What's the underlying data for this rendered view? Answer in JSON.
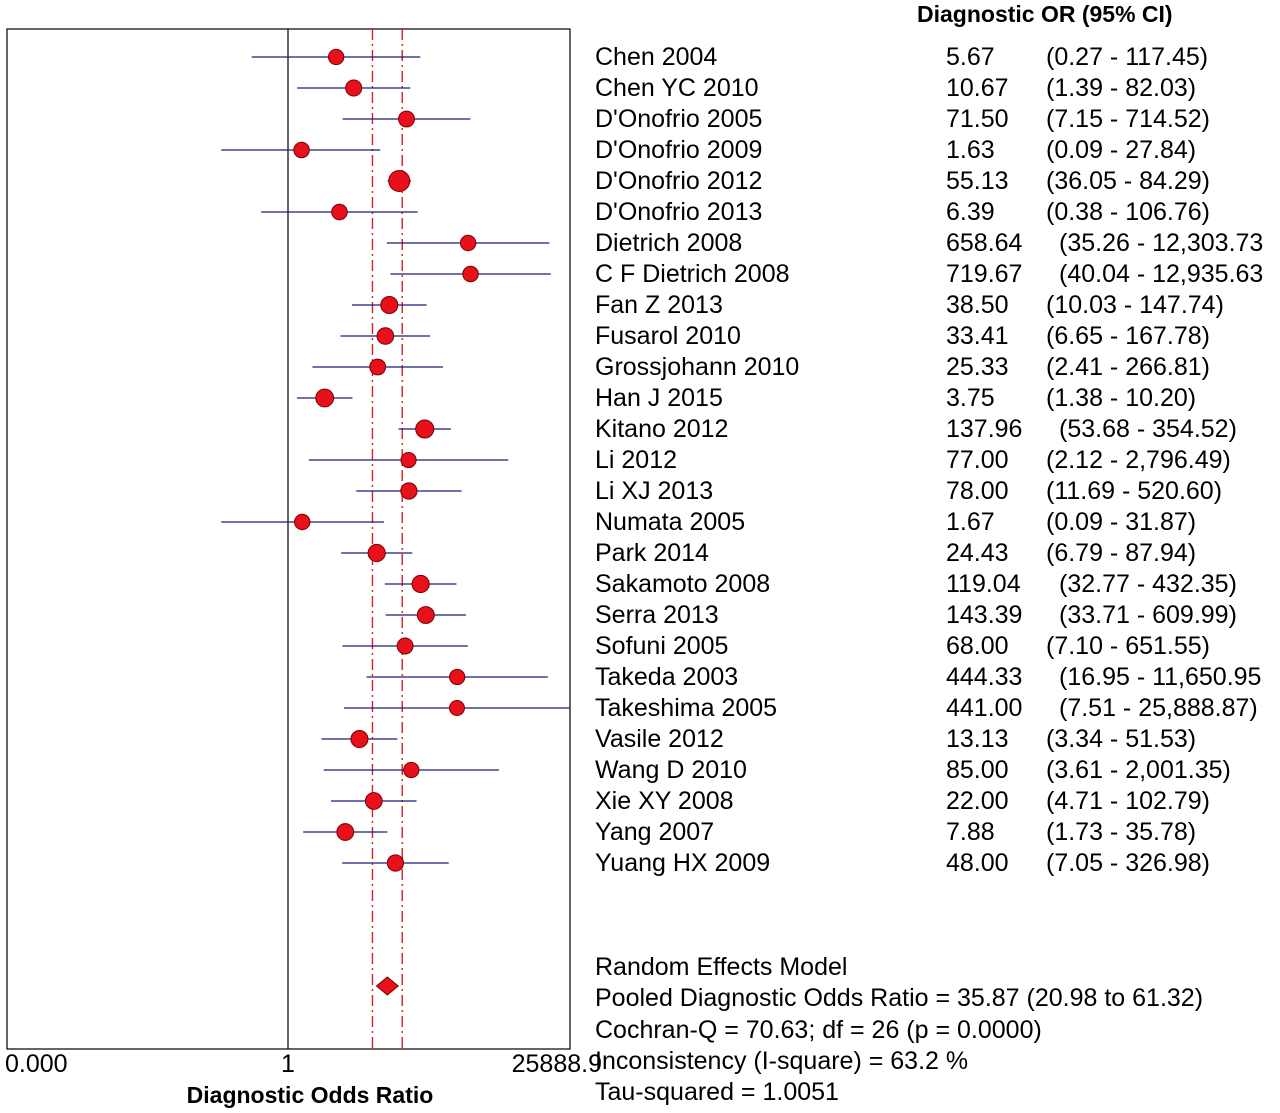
{
  "chart_data": {
    "type": "forest",
    "header": "Diagnostic OR (95% CI)",
    "xlabel": "Diagnostic Odds Ratio",
    "x_scale": "log",
    "xlim": [
      0.0,
      25888.9
    ],
    "x_tick_labels": [
      "0.000",
      "1",
      "25888.9"
    ],
    "reference_line": 1,
    "pooled": {
      "estimate": 35.87,
      "lower": 20.98,
      "upper": 61.32
    },
    "studies": [
      {
        "name": "Chen 2004",
        "or": 5.67,
        "lower": 0.27,
        "upper": 117.45,
        "or_label": "5.67",
        "ci_label": "(0.27 - 117.45)"
      },
      {
        "name": "Chen YC 2010",
        "or": 10.67,
        "lower": 1.39,
        "upper": 82.03,
        "or_label": "10.67",
        "ci_label": "(1.39 - 82.03)"
      },
      {
        "name": "D'Onofrio 2005",
        "or": 71.5,
        "lower": 7.15,
        "upper": 714.52,
        "or_label": "71.50",
        "ci_label": "(7.15 - 714.52)"
      },
      {
        "name": "D'Onofrio 2009",
        "or": 1.63,
        "lower": 0.09,
        "upper": 27.84,
        "or_label": "1.63",
        "ci_label": "(0.09 - 27.84)"
      },
      {
        "name": "D'Onofrio 2012",
        "or": 55.13,
        "lower": 36.05,
        "upper": 84.29,
        "or_label": "55.13",
        "ci_label": "(36.05 - 84.29)"
      },
      {
        "name": "D'Onofrio 2013",
        "or": 6.39,
        "lower": 0.38,
        "upper": 106.76,
        "or_label": "6.39",
        "ci_label": "(0.38 - 106.76)"
      },
      {
        "name": "Dietrich 2008",
        "or": 658.64,
        "lower": 35.26,
        "upper": 12303.73,
        "or_label": "658.64",
        "ci_label": "(35.26 - 12,303.73"
      },
      {
        "name": "C F Dietrich 2008",
        "or": 719.67,
        "lower": 40.04,
        "upper": 12935.63,
        "or_label": "719.67",
        "ci_label": "(40.04 - 12,935.63"
      },
      {
        "name": "Fan Z 2013",
        "or": 38.5,
        "lower": 10.03,
        "upper": 147.74,
        "or_label": "38.50",
        "ci_label": "(10.03 - 147.74)"
      },
      {
        "name": "Fusarol 2010",
        "or": 33.41,
        "lower": 6.65,
        "upper": 167.78,
        "or_label": "33.41",
        "ci_label": "(6.65 - 167.78)"
      },
      {
        "name": "Grossjohann 2010",
        "or": 25.33,
        "lower": 2.41,
        "upper": 266.81,
        "or_label": "25.33",
        "ci_label": "(2.41 - 266.81)"
      },
      {
        "name": "Han J 2015",
        "or": 3.75,
        "lower": 1.38,
        "upper": 10.2,
        "or_label": "3.75",
        "ci_label": "(1.38 - 10.20)"
      },
      {
        "name": "Kitano 2012",
        "or": 137.96,
        "lower": 53.68,
        "upper": 354.52,
        "or_label": "137.96",
        "ci_label": "(53.68 - 354.52)"
      },
      {
        "name": "Li 2012",
        "or": 77.0,
        "lower": 2.12,
        "upper": 2796.49,
        "or_label": "77.00",
        "ci_label": "(2.12 - 2,796.49)"
      },
      {
        "name": "Li XJ 2013",
        "or": 78.0,
        "lower": 11.69,
        "upper": 520.6,
        "or_label": "78.00",
        "ci_label": "(11.69 - 520.60)"
      },
      {
        "name": "Numata 2005",
        "or": 1.67,
        "lower": 0.09,
        "upper": 31.87,
        "or_label": "1.67",
        "ci_label": "(0.09 - 31.87)"
      },
      {
        "name": "Park 2014",
        "or": 24.43,
        "lower": 6.79,
        "upper": 87.94,
        "or_label": "24.43",
        "ci_label": "(6.79 - 87.94)"
      },
      {
        "name": "Sakamoto 2008",
        "or": 119.04,
        "lower": 32.77,
        "upper": 432.35,
        "or_label": "119.04",
        "ci_label": "(32.77 - 432.35)"
      },
      {
        "name": "Serra 2013",
        "or": 143.39,
        "lower": 33.71,
        "upper": 609.99,
        "or_label": "143.39",
        "ci_label": "(33.71 - 609.99)"
      },
      {
        "name": "Sofuni 2005",
        "or": 68.0,
        "lower": 7.1,
        "upper": 651.55,
        "or_label": "68.00",
        "ci_label": "(7.10 - 651.55)"
      },
      {
        "name": "Takeda 2003",
        "or": 444.33,
        "lower": 16.95,
        "upper": 11650.95,
        "or_label": "444.33",
        "ci_label": "(16.95 - 11,650.95"
      },
      {
        "name": "Takeshima 2005",
        "or": 441.0,
        "lower": 7.51,
        "upper": 25888.87,
        "or_label": "441.00",
        "ci_label": "(7.51 - 25,888.87)"
      },
      {
        "name": "Vasile 2012",
        "or": 13.13,
        "lower": 3.34,
        "upper": 51.53,
        "or_label": "13.13",
        "ci_label": "(3.34 - 51.53)"
      },
      {
        "name": "Wang D 2010",
        "or": 85.0,
        "lower": 3.61,
        "upper": 2001.35,
        "or_label": "85.00",
        "ci_label": "(3.61 - 2,001.35)"
      },
      {
        "name": "Xie XY 2008",
        "or": 22.0,
        "lower": 4.71,
        "upper": 102.79,
        "or_label": "22.00",
        "ci_label": "(4.71 - 102.79)"
      },
      {
        "name": "Yang 2007",
        "or": 7.88,
        "lower": 1.73,
        "upper": 35.78,
        "or_label": "7.88",
        "ci_label": "(1.73 - 35.78)"
      },
      {
        "name": "Yuang HX 2009",
        "or": 48.0,
        "lower": 7.05,
        "upper": 326.98,
        "or_label": "48.00",
        "ci_label": "(7.05 - 326.98)"
      }
    ],
    "summary_lines": [
      "Random Effects Model",
      "Pooled Diagnostic Odds Ratio = 35.87 (20.98 to 61.32)",
      "Cochran-Q = 70.63; df =  26 (p = 0.0000)",
      "Inconsistency (I-square) = 63.2 %",
      "Tau-squared = 1.0051"
    ]
  },
  "colors": {
    "marker_fill": "#e8101a",
    "marker_stroke": "#7a0000",
    "ci_line": "#1c1c7a",
    "pooled_line": "#d0202a",
    "axis": "#000000"
  }
}
